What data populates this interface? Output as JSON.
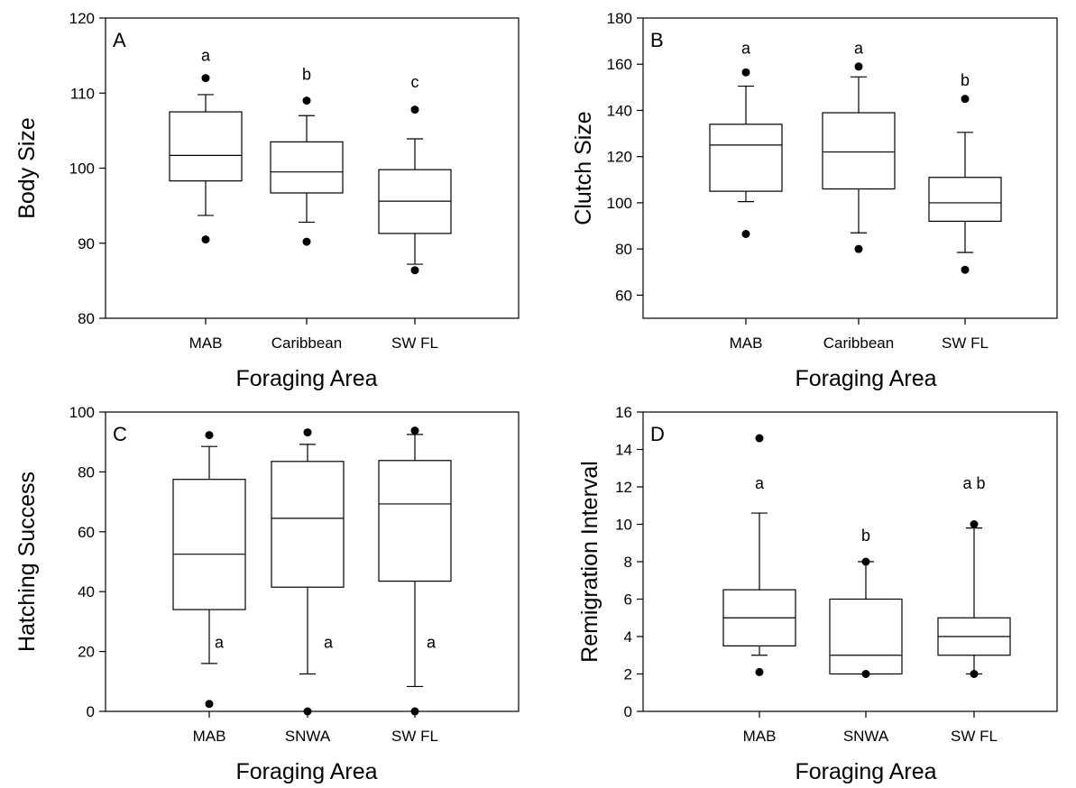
{
  "chart_data": [
    {
      "type": "box",
      "panel_label": "A",
      "xlabel": "Foraging Area",
      "ylabel": "Body Size",
      "ylim": [
        80,
        120
      ],
      "yticks": [
        80,
        90,
        100,
        110,
        120
      ],
      "categories": [
        "MAB",
        "Caribbean",
        "SW FL"
      ],
      "boxes": [
        {
          "whisker_low": 93.7,
          "q1": 98.3,
          "median": 101.7,
          "q3": 107.5,
          "whisker_high": 109.8,
          "outliers": [
            112.0,
            90.5
          ]
        },
        {
          "whisker_low": 92.8,
          "q1": 96.7,
          "median": 99.5,
          "q3": 103.5,
          "whisker_high": 107.0,
          "outliers": [
            109.0,
            90.2
          ]
        },
        {
          "whisker_low": 87.2,
          "q1": 91.3,
          "median": 95.6,
          "q3": 99.8,
          "whisker_high": 103.9,
          "outliers": [
            107.8,
            86.4
          ]
        }
      ],
      "significance": [
        {
          "text": "a",
          "y": 115.0
        },
        {
          "text": "b",
          "y": 112.5
        },
        {
          "text": "c",
          "y": 111.5
        }
      ]
    },
    {
      "type": "box",
      "panel_label": "B",
      "xlabel": "Foraging Area",
      "ylabel": "Clutch Size",
      "ylim": [
        50,
        180
      ],
      "yticks": [
        60,
        80,
        100,
        120,
        140,
        160,
        180
      ],
      "categories": [
        "MAB",
        "Caribbean",
        "SW FL"
      ],
      "boxes": [
        {
          "whisker_low": 100.5,
          "q1": 105.0,
          "median": 125.0,
          "q3": 134.0,
          "whisker_high": 150.5,
          "outliers": [
            156.5,
            86.5
          ]
        },
        {
          "whisker_low": 87.0,
          "q1": 106.0,
          "median": 122.0,
          "q3": 139.0,
          "whisker_high": 154.5,
          "outliers": [
            159.0,
            80.0
          ]
        },
        {
          "whisker_low": 78.5,
          "q1": 92.0,
          "median": 100.0,
          "q3": 111.0,
          "whisker_high": 130.5,
          "outliers": [
            145.0,
            71.0
          ]
        }
      ],
      "significance": [
        {
          "text": "a",
          "y": 167.0
        },
        {
          "text": "a",
          "y": 167.0
        },
        {
          "text": "b",
          "y": 153.0
        }
      ]
    },
    {
      "type": "box",
      "panel_label": "C",
      "xlabel": "Foraging Area",
      "ylabel": "Hatching Success",
      "ylim": [
        0,
        100
      ],
      "yticks": [
        0,
        20,
        40,
        60,
        80,
        100
      ],
      "categories": [
        "MAB",
        "SNWA",
        "SW FL"
      ],
      "boxes": [
        {
          "whisker_low": 16.0,
          "q1": 34.0,
          "median": 52.5,
          "q3": 77.5,
          "whisker_high": 88.5,
          "outliers": [
            92.3,
            2.5
          ]
        },
        {
          "whisker_low": 12.5,
          "q1": 41.5,
          "median": 64.5,
          "q3": 83.5,
          "whisker_high": 89.2,
          "outliers": [
            93.2,
            0.0
          ]
        },
        {
          "whisker_low": 8.3,
          "q1": 43.5,
          "median": 69.3,
          "q3": 83.8,
          "whisker_high": 92.5,
          "outliers": [
            93.8,
            0.0
          ]
        }
      ],
      "significance": [
        {
          "text": "a",
          "y": 23.0
        },
        {
          "text": "a",
          "y": 23.0
        },
        {
          "text": "a",
          "y": 23.0
        }
      ]
    },
    {
      "type": "box",
      "panel_label": "D",
      "xlabel": "Foraging Area",
      "ylabel": "Remigration Interval",
      "ylim": [
        0,
        16
      ],
      "yticks": [
        0,
        2,
        4,
        6,
        8,
        10,
        12,
        14,
        16
      ],
      "categories": [
        "MAB",
        "SNWA",
        "SW FL"
      ],
      "boxes": [
        {
          "whisker_low": 3.0,
          "q1": 3.5,
          "median": 5.0,
          "q3": 6.5,
          "whisker_high": 10.6,
          "outliers": [
            14.6,
            2.1
          ]
        },
        {
          "whisker_low": 2.0,
          "q1": 2.0,
          "median": 3.0,
          "q3": 6.0,
          "whisker_high": 8.0,
          "outliers": [
            8.0,
            2.0
          ]
        },
        {
          "whisker_low": 2.0,
          "q1": 3.0,
          "median": 4.0,
          "q3": 5.0,
          "whisker_high": 9.8,
          "outliers": [
            10.0,
            2.0
          ]
        }
      ],
      "significance": [
        {
          "text": "a",
          "y": 12.2
        },
        {
          "text": "b",
          "y": 9.4
        },
        {
          "text": "a b",
          "y": 12.2
        }
      ]
    }
  ]
}
